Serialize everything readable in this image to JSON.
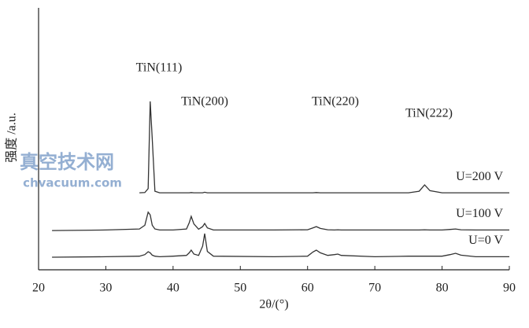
{
  "chart_data": {
    "type": "line",
    "xlabel": "2θ/(°)",
    "ylabel": "强度 /a.u.",
    "annotations": [
      "TiN(111)",
      "TiN(200)",
      "TiN(220)",
      "TiN(222)"
    ],
    "watermark": [
      "真空技术网",
      "chvacuum.com"
    ],
    "x": [
      22,
      30,
      35,
      35.8,
      36.3,
      36.6,
      36.9,
      37.3,
      38,
      40,
      42,
      42.4,
      42.7,
      43.1,
      43.8,
      44.4,
      44.7,
      45.1,
      46,
      55,
      60,
      60.8,
      61.3,
      61.9,
      63,
      64,
      64.5,
      65,
      70,
      75,
      76.6,
      77.4,
      78.2,
      80,
      81.2,
      82,
      82.8,
      85,
      90
    ],
    "series": [
      {
        "name": "U=200 V",
        "color": "#333333",
        "values": [
          null,
          null,
          29.4,
          29.5,
          31,
          64.3,
          50,
          30,
          29.4,
          29.4,
          29.4,
          29.4,
          29.5,
          29.4,
          29.4,
          29.4,
          29.6,
          29.4,
          29.4,
          29.4,
          29.4,
          29.4,
          29.5,
          29.4,
          29.4,
          29.4,
          29.4,
          29.4,
          29.4,
          29.4,
          30,
          32.4,
          30.2,
          29.4,
          29.4,
          29.4,
          29.4,
          29.4,
          29.4
        ]
      },
      {
        "name": "U=100 V",
        "color": "#333333",
        "values": [
          15,
          15.2,
          15.6,
          17,
          22,
          21,
          17,
          15.6,
          15.2,
          15.2,
          15.6,
          18,
          20.4,
          17.5,
          15.5,
          16.5,
          17.7,
          16,
          15.2,
          15.2,
          15.3,
          16,
          16.5,
          15.8,
          15.3,
          15.2,
          15.3,
          15.2,
          15.2,
          15.2,
          15.2,
          15.3,
          15.2,
          15.2,
          15.4,
          15.6,
          15.3,
          15.2,
          15.2
        ]
      },
      {
        "name": "U=0 V",
        "color": "#333333",
        "values": [
          4.8,
          5,
          5.2,
          5.8,
          6.9,
          6.5,
          5.6,
          5.2,
          5,
          5.2,
          5.5,
          6.5,
          7.5,
          6,
          5.5,
          9,
          13.8,
          7,
          5.2,
          5,
          5.2,
          6.8,
          7.5,
          6.5,
          5.5,
          5.8,
          6,
          5.5,
          5,
          5.2,
          5.2,
          5.2,
          5.2,
          5.2,
          5.8,
          6.3,
          5.6,
          5,
          5
        ]
      }
    ],
    "xlim": [
      20,
      90
    ],
    "xticks": [
      20,
      30,
      40,
      50,
      60,
      70,
      80,
      90
    ],
    "ylim": [
      0,
      100
    ]
  }
}
